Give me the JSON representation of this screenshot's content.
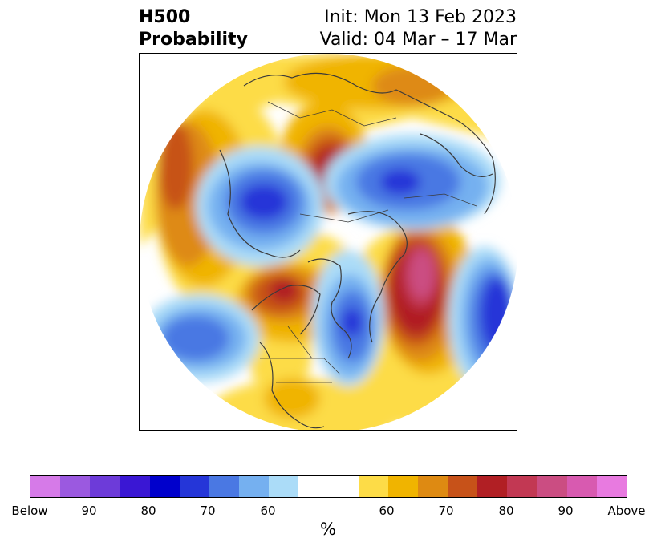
{
  "header": {
    "title_line1": "H500",
    "title_line2": "Probability",
    "init": "Init: Mon 13 Feb 2023",
    "valid": "Valid: 04 Mar – 17 Mar"
  },
  "colorbar": {
    "unit": "%",
    "colors": [
      "#d67ae8",
      "#9b59e0",
      "#6d3bd9",
      "#3a17d4",
      "#0000cc",
      "#2536d8",
      "#4a78e3",
      "#75b0f0",
      "#abdcf8",
      "#ffffff",
      "#fddc47",
      "#f0b400",
      "#de8a12",
      "#c75219",
      "#b11f24",
      "#c23853",
      "#cb4d82",
      "#d85ab0",
      "#e87ae0"
    ],
    "ticks": [
      "Below",
      "90",
      "80",
      "70",
      "60",
      "60",
      "70",
      "80",
      "90",
      "Above"
    ]
  },
  "map": {
    "projection": "polar-stereographic-north",
    "colors": {
      "red_core": "#b11f24",
      "pink_core": "#cb4d82",
      "blue_core": "#2536d8"
    }
  }
}
